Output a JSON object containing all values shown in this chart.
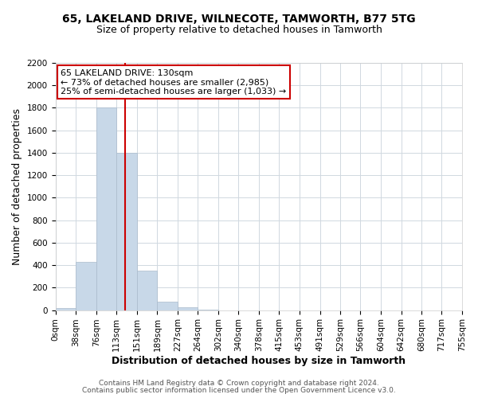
{
  "title": "65, LAKELAND DRIVE, WILNECOTE, TAMWORTH, B77 5TG",
  "subtitle": "Size of property relative to detached houses in Tamworth",
  "xlabel": "Distribution of detached houses by size in Tamworth",
  "ylabel": "Number of detached properties",
  "annotation_title": "65 LAKELAND DRIVE: 130sqm",
  "annotation_line1": "← 73% of detached houses are smaller (2,985)",
  "annotation_line2": "25% of semi-detached houses are larger (1,033) →",
  "property_size": 130,
  "bar_edges": [
    0,
    38,
    76,
    113,
    151,
    189,
    227,
    264,
    302,
    340,
    378,
    415,
    453,
    491,
    529,
    566,
    604,
    642,
    680,
    717,
    755
  ],
  "bar_heights": [
    20,
    430,
    1800,
    1400,
    350,
    75,
    25,
    5,
    0,
    0,
    0,
    0,
    0,
    0,
    0,
    0,
    0,
    0,
    0,
    0
  ],
  "bar_color": "#c8d8e8",
  "bar_edge_color": "#aabbcc",
  "vline_color": "#cc0000",
  "vline_x": 130,
  "ylim": [
    0,
    2200
  ],
  "yticks": [
    0,
    200,
    400,
    600,
    800,
    1000,
    1200,
    1400,
    1600,
    1800,
    2000,
    2200
  ],
  "xtick_labels": [
    "0sqm",
    "38sqm",
    "76sqm",
    "113sqm",
    "151sqm",
    "189sqm",
    "227sqm",
    "264sqm",
    "302sqm",
    "340sqm",
    "378sqm",
    "415sqm",
    "453sqm",
    "491sqm",
    "529sqm",
    "566sqm",
    "604sqm",
    "642sqm",
    "680sqm",
    "717sqm",
    "755sqm"
  ],
  "footer_line1": "Contains HM Land Registry data © Crown copyright and database right 2024.",
  "footer_line2": "Contains public sector information licensed under the Open Government Licence v3.0.",
  "bg_color": "#ffffff",
  "grid_color": "#d0d8e0",
  "annotation_box_color": "#ffffff",
  "annotation_box_edge": "#cc0000",
  "title_fontsize": 10,
  "subtitle_fontsize": 9,
  "axis_label_fontsize": 9,
  "tick_fontsize": 7.5,
  "annotation_fontsize": 8,
  "footer_fontsize": 6.5
}
